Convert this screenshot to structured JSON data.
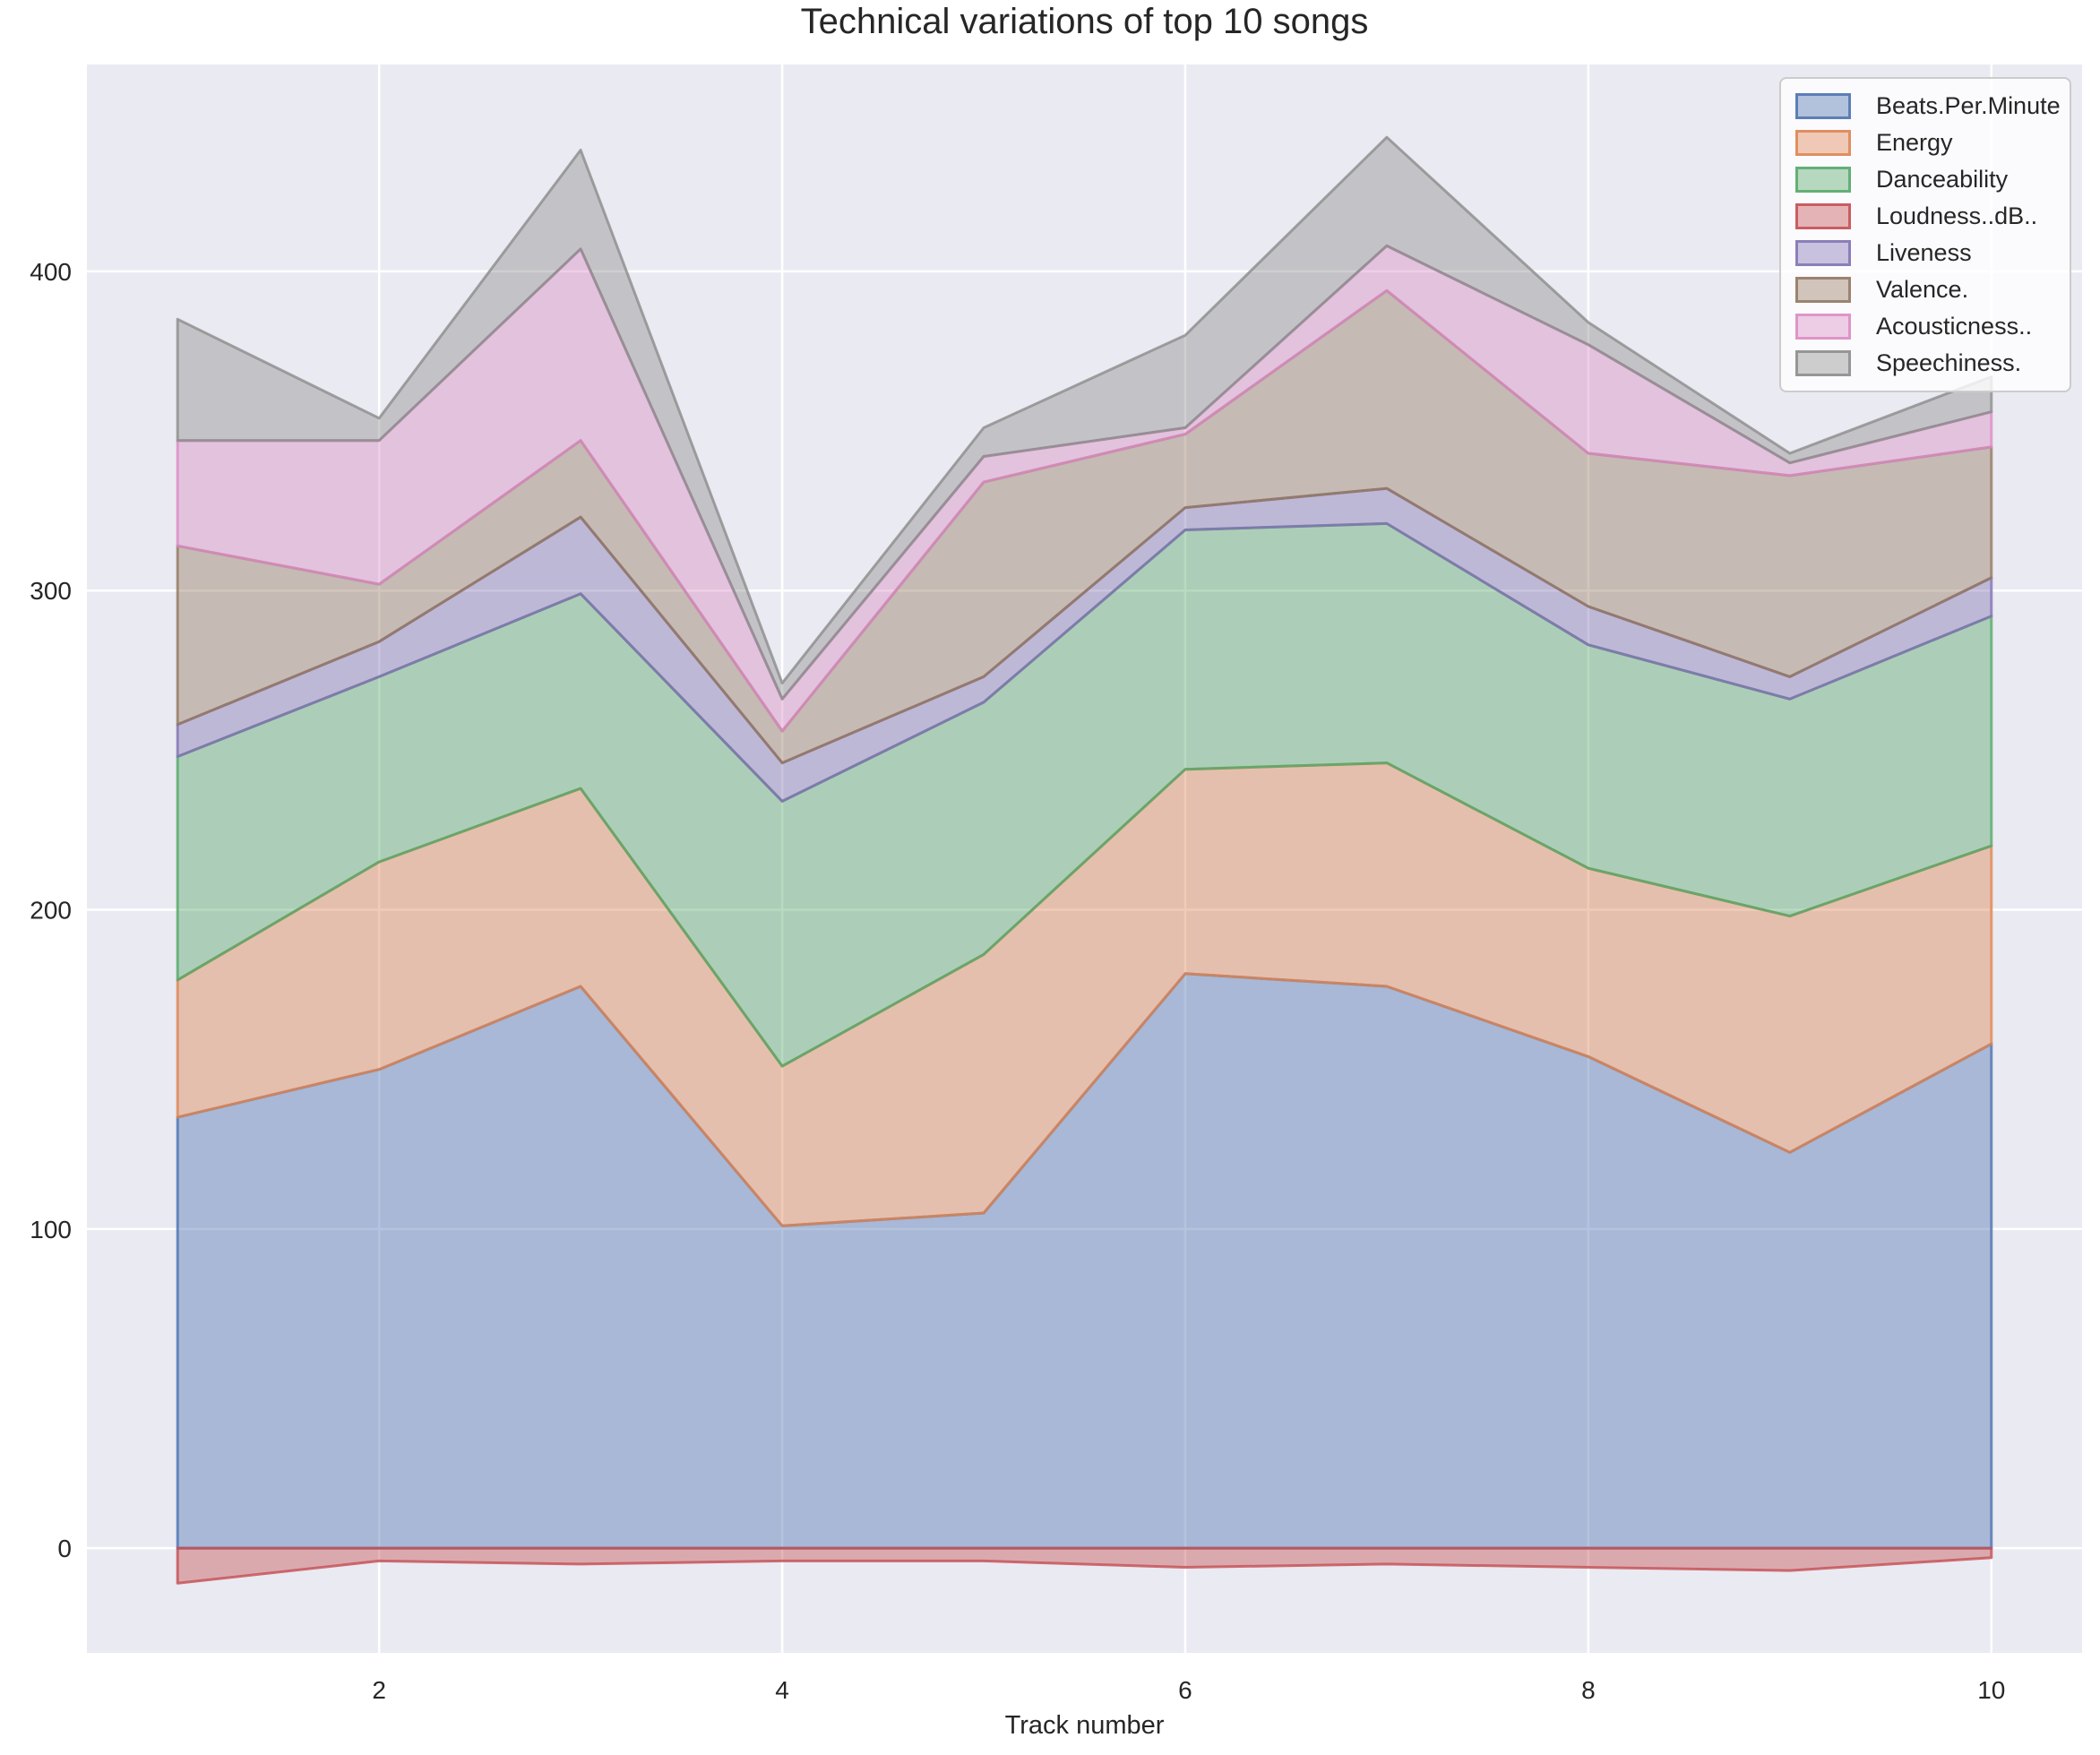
{
  "title": "Technical variations of top 10 songs",
  "chart_data": {
    "type": "area",
    "stacked": true,
    "title": "Technical variations of top 10 songs",
    "xlabel": "Track number",
    "ylabel": "",
    "x": [
      1,
      2,
      3,
      4,
      5,
      6,
      7,
      8,
      9,
      10
    ],
    "x_ticks": [
      2,
      4,
      6,
      8,
      10
    ],
    "y_ticks": [
      0,
      100,
      200,
      300,
      400
    ],
    "xlim": [
      0.55,
      10.45
    ],
    "ylim": [
      -32.8,
      464.8
    ],
    "grid": true,
    "legend_position": "upper right",
    "series": [
      {
        "name": "Beats.Per.Minute",
        "color": "#4c72b0",
        "values": [
          135,
          150,
          176,
          101,
          105,
          180,
          176,
          154,
          124,
          158
        ]
      },
      {
        "name": "Energy",
        "color": "#dd8452",
        "values": [
          43,
          65,
          62,
          50,
          81,
          64,
          70,
          59,
          74,
          62
        ]
      },
      {
        "name": "Danceability",
        "color": "#55a868",
        "values": [
          70,
          58,
          61,
          83,
          79,
          75,
          75,
          70,
          68,
          72
        ]
      },
      {
        "name": "Loudness..dB..",
        "color": "#c44e52",
        "values": [
          -11,
          -4,
          -5,
          -4,
          -4,
          -6,
          -5,
          -6,
          -7,
          -3
        ]
      },
      {
        "name": "Liveness",
        "color": "#8172b3",
        "values": [
          10,
          11,
          24,
          12,
          8,
          7,
          11,
          12,
          7,
          12
        ]
      },
      {
        "name": "Valence.",
        "color": "#937860",
        "values": [
          56,
          18,
          24,
          10,
          61,
          23,
          62,
          48,
          63,
          41
        ]
      },
      {
        "name": "Acousticness..",
        "color": "#da8bc3",
        "values": [
          33,
          45,
          60,
          10,
          8,
          2,
          14,
          34,
          4,
          11
        ]
      },
      {
        "name": "Speechiness.",
        "color": "#8c8c8c",
        "values": [
          38,
          7,
          31,
          5,
          9,
          29,
          34,
          7,
          3,
          11
        ]
      }
    ]
  },
  "style": {
    "plot_background": "#eaeaf2",
    "grid_color": "#ffffff",
    "fill_opacity": 0.42,
    "stroke_opacity": 0.8,
    "stroke_width": 3,
    "text_color": "#262626",
    "legend_background": "rgba(255,255,255,0.8)",
    "legend_border": "#cccccc"
  }
}
